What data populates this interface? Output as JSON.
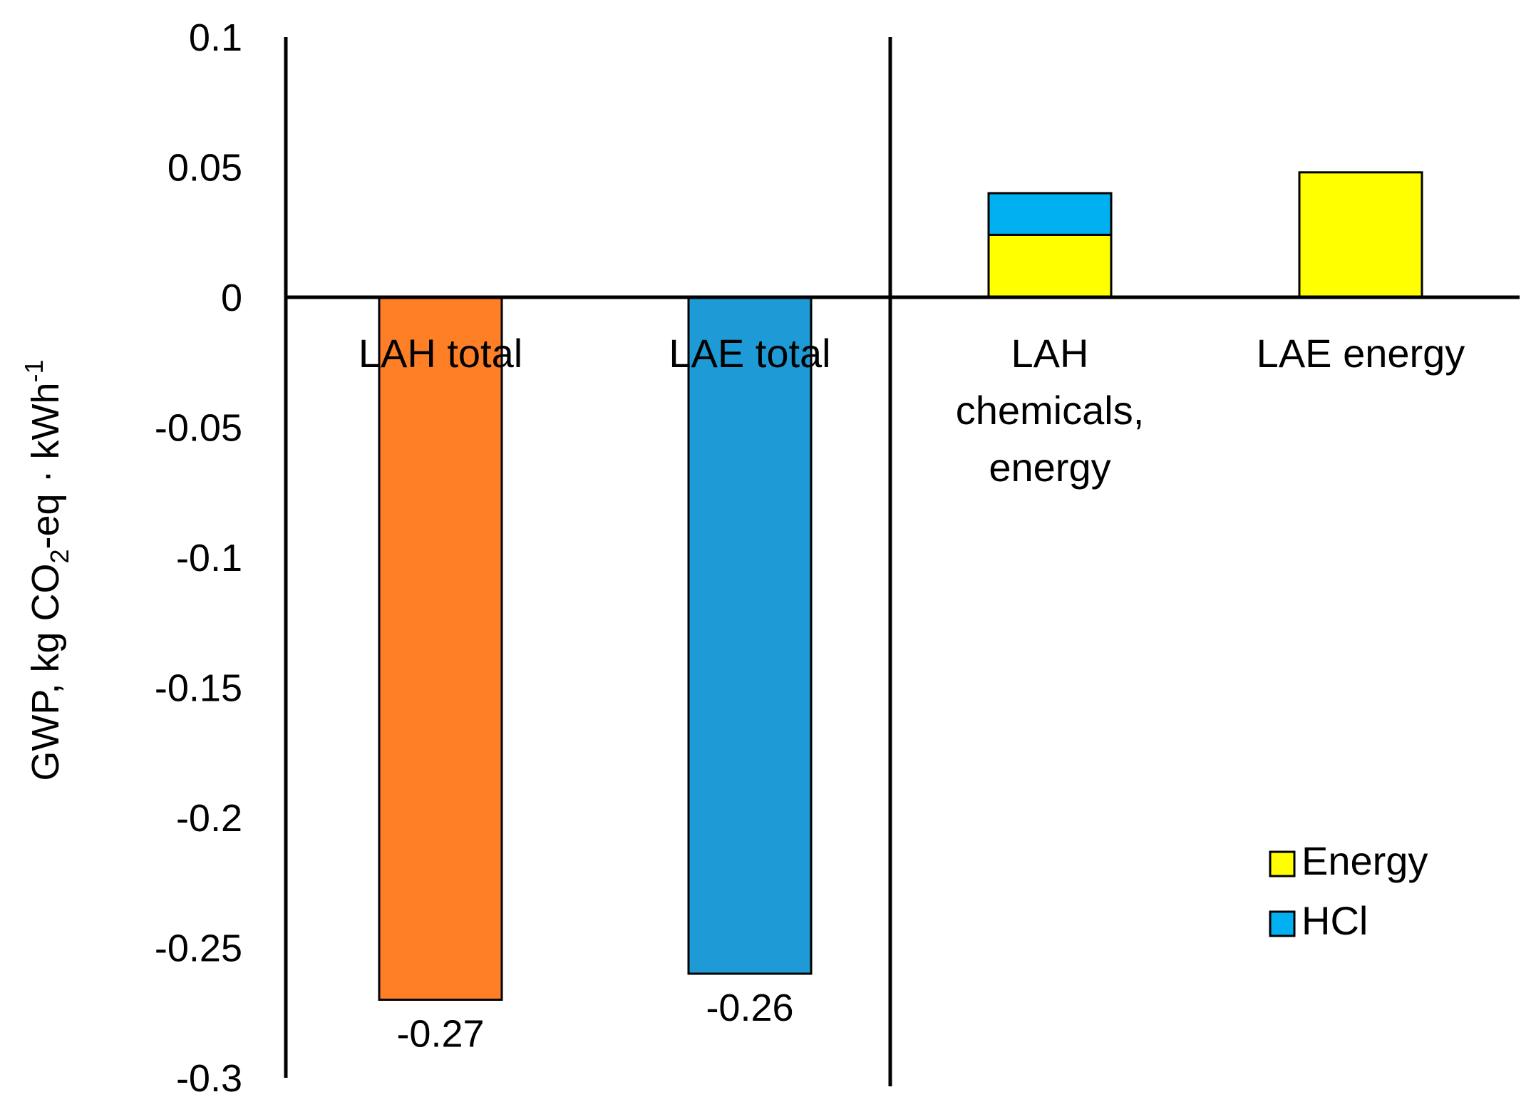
{
  "chart_data": {
    "type": "bar",
    "ylabel": "GWP, kg CO",
    "ylabel_sub": "2",
    "ylabel_mid": "-eq · kWh",
    "ylabel_sup": "-1",
    "ylim": [
      -0.3,
      0.1
    ],
    "yticks": [
      "0.1",
      "0.05",
      "0",
      "-0.05",
      "-0.1",
      "-0.15",
      "-0.2",
      "-0.25",
      "-0.3"
    ],
    "ytick_values": [
      0.1,
      0.05,
      0,
      -0.05,
      -0.1,
      -0.15,
      -0.2,
      -0.25,
      -0.3
    ],
    "categories": [
      {
        "label_lines": [
          "LAH total"
        ]
      },
      {
        "label_lines": [
          "LAE total"
        ]
      },
      {
        "label_lines": [
          "LAH",
          "chemicals,",
          "energy"
        ]
      },
      {
        "label_lines": [
          "LAE energy"
        ]
      }
    ],
    "total_bars": [
      {
        "category_index": 0,
        "value": -0.27,
        "label": "-0.27",
        "color": "#FF7F27"
      },
      {
        "category_index": 1,
        "value": -0.26,
        "label": "-0.26",
        "color": "#1E9BD7"
      }
    ],
    "stacked_series": [
      {
        "name": "Energy",
        "color": "#FFFF00",
        "values": {
          "2": 0.024,
          "3": 0.048
        }
      },
      {
        "name": "HCl",
        "color": "#00B0F0",
        "values": {
          "2": 0.016,
          "3": 0
        }
      }
    ],
    "legend": {
      "placement": "bottom-right",
      "entries": [
        "Energy",
        "HCl"
      ]
    },
    "grid": false
  }
}
